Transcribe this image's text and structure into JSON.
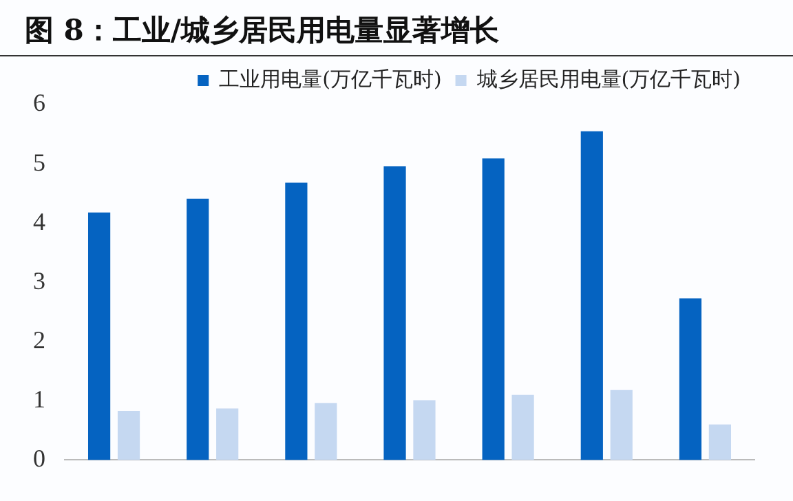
{
  "chart_data": {
    "type": "bar",
    "title": "图 8：工业/城乡居民用电量显著增长",
    "categories": [
      null,
      null,
      null,
      null,
      null,
      null,
      null
    ],
    "series": [
      {
        "name": "工业用电量(万亿千瓦时)",
        "color": "#0563c1",
        "values": [
          4.18,
          4.41,
          4.68,
          4.96,
          5.09,
          5.55,
          2.73
        ]
      },
      {
        "name": "城乡居民用电量(万亿千瓦时)",
        "color": "#c5d8f1",
        "values": [
          0.83,
          0.87,
          0.96,
          1.01,
          1.1,
          1.18,
          0.6
        ]
      }
    ],
    "ylim": [
      0,
      6
    ],
    "yticks": [
      0,
      1,
      2,
      3,
      4,
      5,
      6
    ],
    "grid": false,
    "legend": "top"
  }
}
